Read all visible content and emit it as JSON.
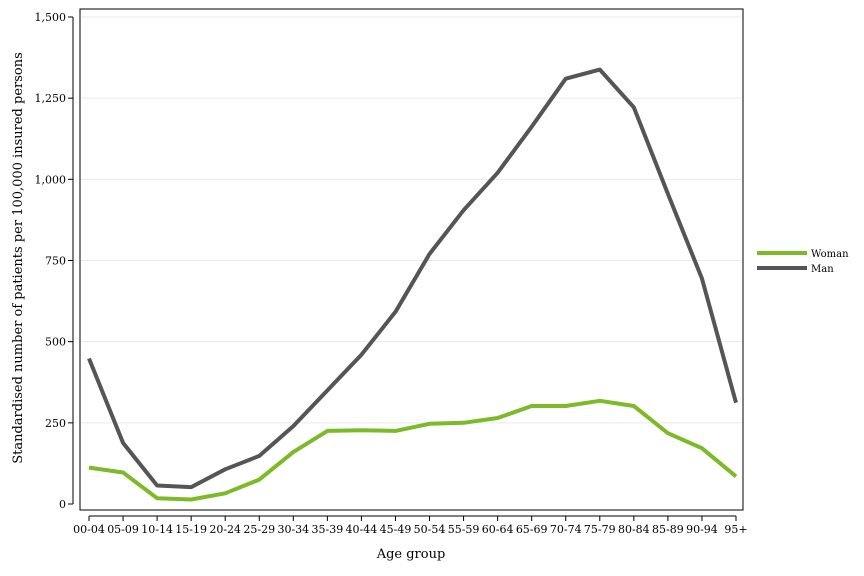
{
  "chart_data": {
    "type": "line",
    "title": "",
    "xlabel": "Age group",
    "ylabel": "Standardised number of patients per 100,000 insured persons",
    "ylim": [
      0,
      1500
    ],
    "yticks": [
      0,
      250,
      500,
      750,
      1000,
      1250,
      1500
    ],
    "ytick_labels": [
      "0",
      "250",
      "500",
      "750",
      "1,000",
      "1,250",
      "1,500"
    ],
    "grid": "horizontal",
    "legend_position": "right",
    "categories": [
      "00-04",
      "05-09",
      "10-14",
      "15-19",
      "20-24",
      "25-29",
      "30-34",
      "35-39",
      "40-44",
      "45-49",
      "50-54",
      "55-59",
      "60-64",
      "65-69",
      "70-74",
      "75-79",
      "80-84",
      "85-89",
      "90-94",
      "95+"
    ],
    "series": [
      {
        "name": "Woman",
        "color": "#7cbb27",
        "values": [
          112,
          97,
          18,
          14,
          33,
          75,
          160,
          225,
          227,
          225,
          247,
          250,
          265,
          302,
          302,
          318,
          302,
          218,
          172,
          85
        ]
      },
      {
        "name": "Man",
        "color": "#555555",
        "values": [
          448,
          188,
          57,
          52,
          107,
          148,
          240,
          350,
          460,
          592,
          770,
          905,
          1020,
          1162,
          1310,
          1338,
          1222,
          955,
          695,
          312
        ]
      }
    ]
  }
}
